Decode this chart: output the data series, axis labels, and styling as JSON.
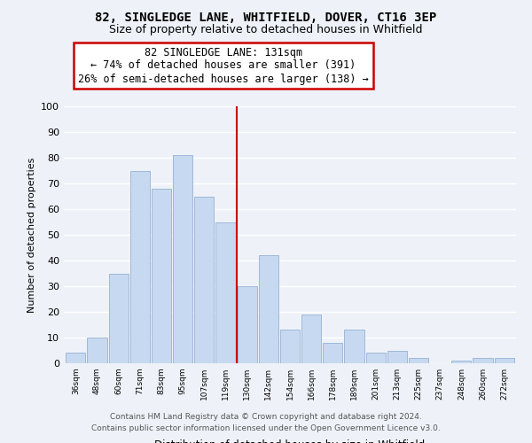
{
  "title": "82, SINGLEDGE LANE, WHITFIELD, DOVER, CT16 3EP",
  "subtitle": "Size of property relative to detached houses in Whitfield",
  "xlabel": "Distribution of detached houses by size in Whitfield",
  "ylabel": "Number of detached properties",
  "bar_labels": [
    "36sqm",
    "48sqm",
    "60sqm",
    "71sqm",
    "83sqm",
    "95sqm",
    "107sqm",
    "119sqm",
    "130sqm",
    "142sqm",
    "154sqm",
    "166sqm",
    "178sqm",
    "189sqm",
    "201sqm",
    "213sqm",
    "225sqm",
    "237sqm",
    "248sqm",
    "260sqm",
    "272sqm"
  ],
  "bar_values": [
    4,
    10,
    35,
    75,
    68,
    81,
    65,
    55,
    30,
    42,
    13,
    19,
    8,
    13,
    4,
    5,
    2,
    0,
    1,
    2,
    2
  ],
  "bar_color": "#c6d9f0",
  "bar_edge_color": "#a0b8d8",
  "highlight_x_label": "130sqm",
  "highlight_line_color": "#cc0000",
  "annotation_line1": "82 SINGLEDGE LANE: 131sqm",
  "annotation_line2": "← 74% of detached houses are smaller (391)",
  "annotation_line3": "26% of semi-detached houses are larger (138) →",
  "annotation_box_edge_color": "#cc0000",
  "ylim": [
    0,
    100
  ],
  "yticks": [
    0,
    10,
    20,
    30,
    40,
    50,
    60,
    70,
    80,
    90,
    100
  ],
  "footer_line1": "Contains HM Land Registry data © Crown copyright and database right 2024.",
  "footer_line2": "Contains public sector information licensed under the Open Government Licence v3.0.",
  "background_color": "#eef2f8",
  "grid_color": "#ffffff",
  "title_fontsize": 10,
  "subtitle_fontsize": 9,
  "annotation_fontsize": 8.5,
  "footer_fontsize": 6.5
}
